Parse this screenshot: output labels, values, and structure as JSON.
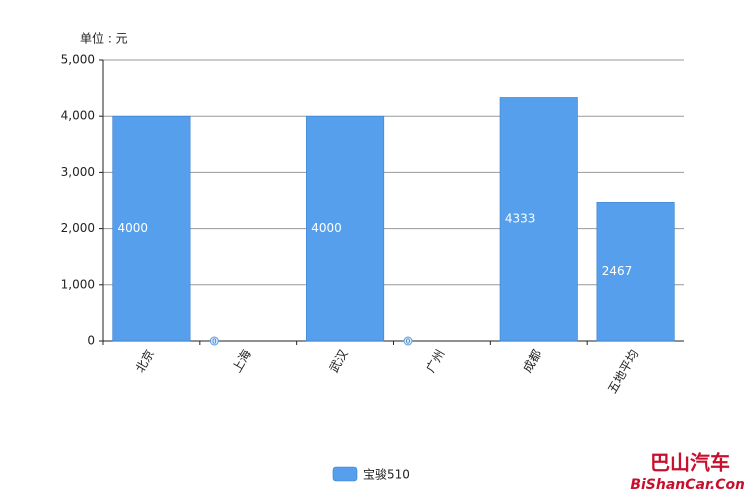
{
  "chart_data": {
    "type": "bar",
    "unit_label": "单位 : 元",
    "categories": [
      "北京",
      "上海",
      "武汉",
      "广州",
      "成都",
      "五地平均"
    ],
    "series": [
      {
        "name": "宝骏510",
        "color": "#559fec",
        "values": [
          4000,
          0,
          4000,
          0,
          4333,
          2467
        ]
      }
    ],
    "ylim": [
      0,
      5000
    ],
    "yticks": [
      0,
      {
        "value": 1000,
        "label": "1,000"
      },
      {
        "value": 2000,
        "label": "2,000"
      },
      {
        "value": 3000,
        "label": "3,000"
      },
      {
        "value": 4000,
        "label": "4,000"
      },
      {
        "value": 5000,
        "label": "5,000"
      }
    ],
    "grid": true,
    "legend": "bottom"
  },
  "watermark": {
    "cn": "巴山汽车",
    "en": "BiShanCar.Com"
  }
}
